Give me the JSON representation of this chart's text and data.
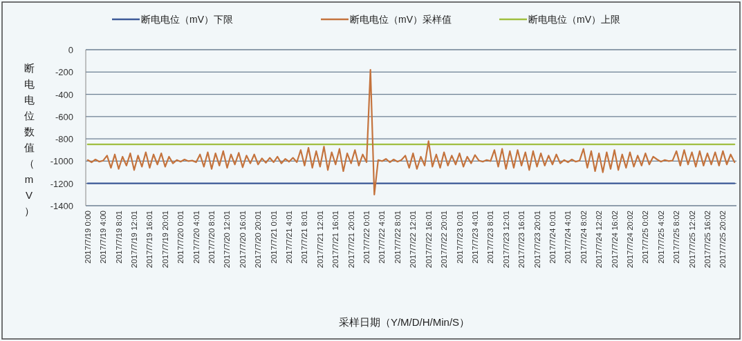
{
  "chart_data": {
    "type": "line",
    "xlabel": "采样日期（Y/M/D/H/Min/S）",
    "ylabel": "断电电位数值（mV）",
    "categories": [
      "2017/7/19 0:00",
      null,
      null,
      null,
      "2017/7/19 4:00",
      null,
      null,
      null,
      "2017/7/19 8:01",
      null,
      null,
      null,
      "2017/7/19 12:01",
      null,
      null,
      null,
      "2017/7/19 16:01",
      null,
      null,
      null,
      "2017/7/19 20:01",
      null,
      null,
      null,
      "2017/7/20 0:01",
      null,
      null,
      null,
      "2017/7/20 4:01",
      null,
      null,
      null,
      "2017/7/20 8:01",
      null,
      null,
      null,
      "2017/7/20 12:01",
      null,
      null,
      null,
      "2017/7/20 16:01",
      null,
      null,
      null,
      "2017/7/20 20:01",
      null,
      null,
      null,
      "2017/7/21 0:01",
      null,
      null,
      null,
      "2017/7/21 4:01",
      null,
      null,
      null,
      "2017/7/21 8:01",
      null,
      null,
      null,
      "2017/7/21 12:01",
      null,
      null,
      null,
      "2017/7/21 16:01",
      null,
      null,
      null,
      "2017/7/21 20:01",
      null,
      null,
      null,
      "2017/7/22 0:01",
      null,
      null,
      null,
      "2017/7/22 4:01",
      null,
      null,
      null,
      "2017/7/22 8:01",
      null,
      null,
      null,
      "2017/7/22 12:01",
      null,
      null,
      null,
      "2017/7/22 16:01",
      null,
      null,
      null,
      "2017/7/22 20:01",
      null,
      null,
      null,
      "2017/7/23 0:01",
      null,
      null,
      null,
      "2017/7/23 4:01",
      null,
      null,
      null,
      "2017/7/23 8:01",
      null,
      null,
      null,
      "2017/7/23 12:01",
      null,
      null,
      null,
      "2017/7/23 16:01",
      null,
      null,
      null,
      "2017/7/23 20:01",
      null,
      null,
      null,
      "2017/7/24 0:01",
      null,
      null,
      null,
      "2017/7/24 4:01",
      null,
      null,
      null,
      "2017/7/24 8:02",
      null,
      null,
      null,
      "2017/7/24 12:02",
      null,
      null,
      null,
      "2017/7/24 16:02",
      null,
      null,
      null,
      "2017/7/24 20:02",
      null,
      null,
      null,
      "2017/7/25 0:02",
      null,
      null,
      null,
      "2017/7/25 4:02",
      null,
      null,
      null,
      "2017/7/25 8:02",
      null,
      null,
      null,
      "2017/7/25 12:02",
      null,
      null,
      null,
      "2017/7/25 16:02",
      null,
      null,
      null,
      "2017/7/25 20:02",
      null,
      null,
      null
    ],
    "series": [
      {
        "name": "断电电位（mV）下限",
        "color": "#3d5a98",
        "values": [
          -1200,
          -1200,
          -1200,
          -1200,
          -1200,
          -1200,
          -1200,
          -1200,
          -1200,
          -1200,
          -1200,
          -1200,
          -1200,
          -1200,
          -1200,
          -1200,
          -1200,
          -1200,
          -1200,
          -1200,
          -1200,
          -1200,
          -1200,
          -1200,
          -1200,
          -1200,
          -1200,
          -1200,
          -1200,
          -1200,
          -1200,
          -1200,
          -1200,
          -1200,
          -1200,
          -1200,
          -1200,
          -1200,
          -1200,
          -1200,
          -1200,
          -1200,
          -1200,
          -1200,
          -1200,
          -1200,
          -1200,
          -1200,
          -1200,
          -1200,
          -1200,
          -1200,
          -1200,
          -1200,
          -1200,
          -1200,
          -1200,
          -1200,
          -1200,
          -1200,
          -1200,
          -1200,
          -1200,
          -1200,
          -1200,
          -1200,
          -1200,
          -1200,
          -1200,
          -1200,
          -1200,
          -1200,
          -1200,
          -1200,
          -1200,
          -1200,
          -1200,
          -1200,
          -1200,
          -1200,
          -1200,
          -1200,
          -1200,
          -1200,
          -1200,
          -1200,
          -1200,
          -1200,
          -1200,
          -1200,
          -1200,
          -1200,
          -1200,
          -1200,
          -1200,
          -1200,
          -1200,
          -1200,
          -1200,
          -1200,
          -1200,
          -1200,
          -1200,
          -1200,
          -1200,
          -1200,
          -1200,
          -1200,
          -1200,
          -1200,
          -1200,
          -1200,
          -1200,
          -1200,
          -1200,
          -1200,
          -1200,
          -1200,
          -1200,
          -1200,
          -1200,
          -1200,
          -1200,
          -1200,
          -1200,
          -1200,
          -1200,
          -1200,
          -1200,
          -1200,
          -1200,
          -1200,
          -1200,
          -1200,
          -1200,
          -1200,
          -1200,
          -1200,
          -1200,
          -1200,
          -1200,
          -1200,
          -1200,
          -1200,
          -1200,
          -1200,
          -1200,
          -1200,
          -1200,
          -1200,
          -1200,
          -1200,
          -1200,
          -1200,
          -1200,
          -1200,
          -1200,
          -1200,
          -1200,
          -1200,
          -1200,
          -1200,
          -1200,
          -1200,
          -1200,
          -1200,
          -1200,
          -1200
        ]
      },
      {
        "name": "断电电位（mV）采样值",
        "color": "#c4733d",
        "values": [
          -990,
          -1010,
          -985,
          -1005,
          -995,
          -950,
          -1060,
          -940,
          -1070,
          -960,
          -1040,
          -930,
          -1080,
          -950,
          -1050,
          -920,
          -1060,
          -940,
          -1030,
          -930,
          -1050,
          -960,
          -1020,
          -990,
          -1005,
          -985,
          -1000,
          -995,
          -1010,
          -940,
          -1050,
          -920,
          -1070,
          -930,
          -1040,
          -910,
          -1060,
          -940,
          -1030,
          -925,
          -1055,
          -950,
          -1020,
          -940,
          -1030,
          -975,
          -1015,
          -970,
          -1010,
          -960,
          -1020,
          -980,
          -1005,
          -970,
          -1010,
          -900,
          -1040,
          -880,
          -1060,
          -910,
          -1050,
          -870,
          -1080,
          -920,
          -1030,
          -890,
          -1090,
          -930,
          -1020,
          -900,
          -1040,
          -940,
          -1010,
          -180,
          -1300,
          -990,
          -1000,
          -980,
          -1010,
          -985,
          -1005,
          -990,
          -950,
          -1060,
          -930,
          -1070,
          -960,
          -1040,
          -820,
          -1050,
          -940,
          -1060,
          -920,
          -1040,
          -950,
          -1030,
          -930,
          -1050,
          -960,
          -1020,
          -945,
          -995,
          -1005,
          -990,
          -1000,
          -900,
          -1050,
          -890,
          -1070,
          -910,
          -1060,
          -900,
          -1040,
          -920,
          -1080,
          -910,
          -1050,
          -930,
          -1040,
          -950,
          -1030,
          -940,
          -1020,
          -990,
          -1010,
          -985,
          -1005,
          -995,
          -890,
          -1060,
          -910,
          -1090,
          -930,
          -1100,
          -920,
          -1070,
          -900,
          -1080,
          -940,
          -1060,
          -920,
          -1050,
          -950,
          -1040,
          -930,
          -1030,
          -960,
          -985,
          -1005,
          -990,
          -1000,
          -995,
          -910,
          -1040,
          -900,
          -1030,
          -920,
          -1050,
          -910,
          -1040,
          -930,
          -1030,
          -920,
          -1040,
          -910,
          -1030,
          -940,
          -1010
        ]
      },
      {
        "name": "断电电位（mV）上限",
        "color": "#9fbe3e",
        "values": [
          -850,
          -850,
          -850,
          -850,
          -850,
          -850,
          -850,
          -850,
          -850,
          -850,
          -850,
          -850,
          -850,
          -850,
          -850,
          -850,
          -850,
          -850,
          -850,
          -850,
          -850,
          -850,
          -850,
          -850,
          -850,
          -850,
          -850,
          -850,
          -850,
          -850,
          -850,
          -850,
          -850,
          -850,
          -850,
          -850,
          -850,
          -850,
          -850,
          -850,
          -850,
          -850,
          -850,
          -850,
          -850,
          -850,
          -850,
          -850,
          -850,
          -850,
          -850,
          -850,
          -850,
          -850,
          -850,
          -850,
          -850,
          -850,
          -850,
          -850,
          -850,
          -850,
          -850,
          -850,
          -850,
          -850,
          -850,
          -850,
          -850,
          -850,
          -850,
          -850,
          -850,
          -850,
          -850,
          -850,
          -850,
          -850,
          -850,
          -850,
          -850,
          -850,
          -850,
          -850,
          -850,
          -850,
          -850,
          -850,
          -850,
          -850,
          -850,
          -850,
          -850,
          -850,
          -850,
          -850,
          -850,
          -850,
          -850,
          -850,
          -850,
          -850,
          -850,
          -850,
          -850,
          -850,
          -850,
          -850,
          -850,
          -850,
          -850,
          -850,
          -850,
          -850,
          -850,
          -850,
          -850,
          -850,
          -850,
          -850,
          -850,
          -850,
          -850,
          -850,
          -850,
          -850,
          -850,
          -850,
          -850,
          -850,
          -850,
          -850,
          -850,
          -850,
          -850,
          -850,
          -850,
          -850,
          -850,
          -850,
          -850,
          -850,
          -850,
          -850,
          -850,
          -850,
          -850,
          -850,
          -850,
          -850,
          -850,
          -850,
          -850,
          -850,
          -850,
          -850,
          -850,
          -850,
          -850,
          -850,
          -850,
          -850,
          -850,
          -850,
          -850,
          -850,
          -850,
          -850
        ]
      }
    ],
    "ylim": [
      -1400,
      0
    ],
    "yticks": [
      0,
      -200,
      -400,
      -600,
      -800,
      -1000,
      -1200,
      -1400
    ],
    "grid": "y",
    "legend": "top",
    "marker": "none",
    "line_style": "solid"
  }
}
